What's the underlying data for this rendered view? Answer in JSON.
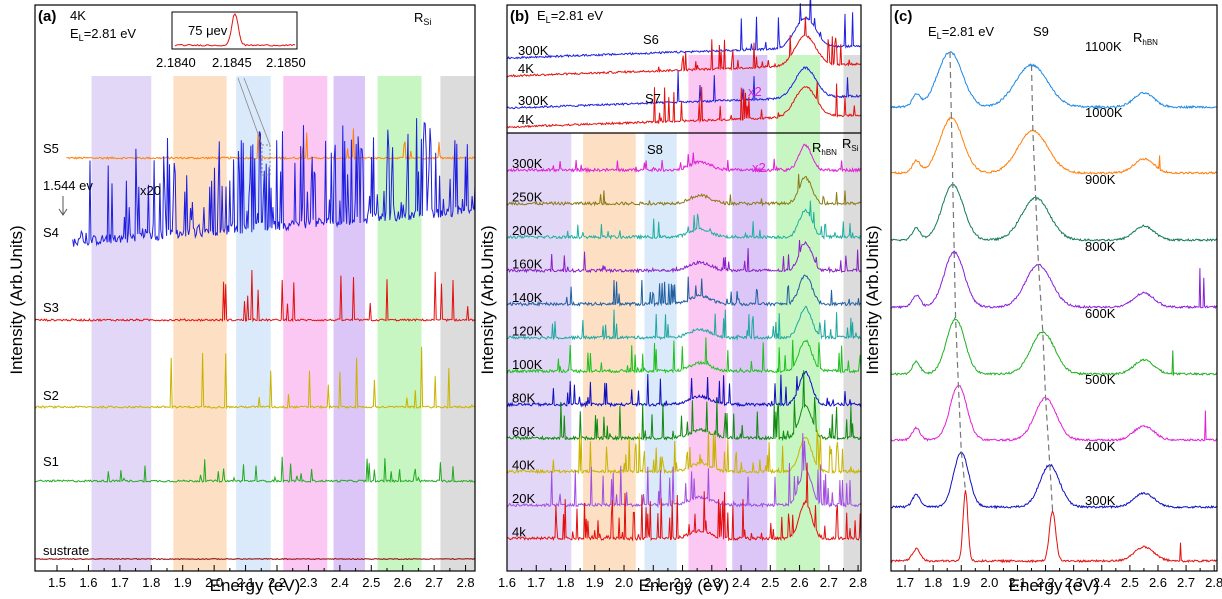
{
  "figure": {
    "y_axis_label": "Intensity (Arb.Units)",
    "x_axis_label": "Energy (eV)"
  },
  "colors": {
    "orange": "#ff7f0e",
    "blue": "#1f1fe0",
    "red": "#e31010",
    "olive": "#c8b400",
    "green": "#22aa22",
    "darkred": "#8b0000",
    "band_violet": "#e3d7f7",
    "band_orange": "#fde0c4",
    "band_lightblue": "#dbeafb",
    "band_pink": "#fbc8f3",
    "band_purple": "#dcc6f7",
    "band_green": "#c8f6c2",
    "band_gray": "#dcdcdc"
  },
  "chart_data": [
    {
      "type": "line",
      "panel_label": "(a)",
      "xlabel": "Energy (eV)",
      "ylabel": "Intensity (Arb.Units)",
      "xlim": [
        1.43,
        2.83
      ],
      "x_ticks": [
        "1.5",
        "1.6",
        "1.7",
        "1.8",
        "1.9",
        "2.0",
        "2.1",
        "2.2",
        "2.3",
        "2.4",
        "2.5",
        "2.6",
        "2.7",
        "2.8"
      ],
      "annotations": {
        "temperature": "4K",
        "laser": "E",
        "laser_sub": "L",
        "laser_value": "=2.81 eV",
        "raman": "R",
        "raman_sub": "Si",
        "scale": "x20",
        "edge_energy": "1.544 ev",
        "inset_linewidth": "75 μev",
        "inset_ticks": [
          "2.1840",
          "2.1845",
          "2.1850"
        ]
      },
      "bands": [
        [
          1.61,
          1.8,
          "band_violet"
        ],
        [
          1.87,
          2.04,
          "band_orange"
        ],
        [
          2.07,
          2.18,
          "band_lightblue"
        ],
        [
          2.22,
          2.36,
          "band_pink"
        ],
        [
          2.38,
          2.48,
          "band_purple"
        ],
        [
          2.52,
          2.66,
          "band_green"
        ],
        [
          2.72,
          2.83,
          "band_gray"
        ]
      ],
      "series": [
        {
          "name": "S5",
          "color": "orange"
        },
        {
          "name": "S4",
          "color": "blue"
        },
        {
          "name": "S3",
          "color": "red"
        },
        {
          "name": "S2",
          "color": "olive"
        },
        {
          "name": "S1",
          "color": "green"
        },
        {
          "name": "sustrate",
          "color": "darkred"
        }
      ]
    },
    {
      "type": "line",
      "panel_label": "(b)",
      "xlabel": "Energy (eV)",
      "ylabel": "Intensity (Arb.Units)",
      "xlim": [
        1.6,
        2.81
      ],
      "x_ticks": [
        "1.6",
        "1.7",
        "1.8",
        "1.9",
        "2.0",
        "2.1",
        "2.2",
        "2.3",
        "2.4",
        "2.5",
        "2.6",
        "2.7",
        "2.8"
      ],
      "annotations": {
        "laser": "E",
        "laser_sub": "L",
        "laser_value": "=2.81 eV",
        "s6": "S6",
        "s7": "S7",
        "s8": "S8",
        "scale_top": "x2",
        "scale_bottom": "x2",
        "raman_hbn": "R",
        "raman_hbn_sub": "hBN",
        "raman_si": "R",
        "raman_si_sub": "Si"
      },
      "top_series": [
        {
          "name": "300K",
          "color": "#1f1fe0"
        },
        {
          "name": "4K",
          "color": "#e31010"
        },
        {
          "name": "300K",
          "color": "#1f1fe0"
        },
        {
          "name": "4K",
          "color": "#e31010"
        }
      ],
      "series": [
        {
          "name": "300K",
          "color": "#e020d8"
        },
        {
          "name": "250K",
          "color": "#8a7a18"
        },
        {
          "name": "200K",
          "color": "#20b0a0"
        },
        {
          "name": "160K",
          "color": "#8a20c8"
        },
        {
          "name": "140K",
          "color": "#2060a0"
        },
        {
          "name": "120K",
          "color": "#20a8a0"
        },
        {
          "name": "100K",
          "color": "#20c020"
        },
        {
          "name": "80K",
          "color": "#1010c0"
        },
        {
          "name": "60K",
          "color": "#108a10"
        },
        {
          "name": "40K",
          "color": "#c8b400"
        },
        {
          "name": "20K",
          "color": "#a050e0"
        },
        {
          "name": "4k",
          "color": "#e31010"
        }
      ]
    },
    {
      "type": "line",
      "panel_label": "(c)",
      "xlabel": "Energy (eV)",
      "ylabel": "Intensity (Arb.Units)",
      "xlim": [
        1.65,
        2.81
      ],
      "x_ticks": [
        "1.7",
        "1.8",
        "1.9",
        "2.0",
        "2.1",
        "2.2",
        "2.3",
        "2.4",
        "2.5",
        "2.6",
        "2.7",
        "2.8"
      ],
      "annotations": {
        "laser": "E",
        "laser_sub": "L",
        "laser_value": "=2.81 eV",
        "s9": "S9",
        "raman": "R",
        "raman_sub": "hBN"
      },
      "series": [
        {
          "name": "1100K",
          "color": "#1e88e5",
          "peak1": 1.86,
          "peak2": 2.15
        },
        {
          "name": "1000K",
          "color": "#ff7f0e",
          "peak1": 1.865,
          "peak2": 2.155
        },
        {
          "name": "900K",
          "color": "#127a5c",
          "peak1": 1.87,
          "peak2": 2.165
        },
        {
          "name": "800K",
          "color": "#8a20d8",
          "peak1": 1.875,
          "peak2": 2.175
        },
        {
          "name": "600K",
          "color": "#20b020",
          "peak1": 1.88,
          "peak2": 2.19
        },
        {
          "name": "500K",
          "color": "#e020d8",
          "peak1": 1.89,
          "peak2": 2.2
        },
        {
          "name": "400K",
          "color": "#1010c0",
          "peak1": 1.9,
          "peak2": 2.215
        },
        {
          "name": "300K",
          "color": "#e31010",
          "peak1": 1.915,
          "peak2": 2.225
        }
      ]
    }
  ]
}
